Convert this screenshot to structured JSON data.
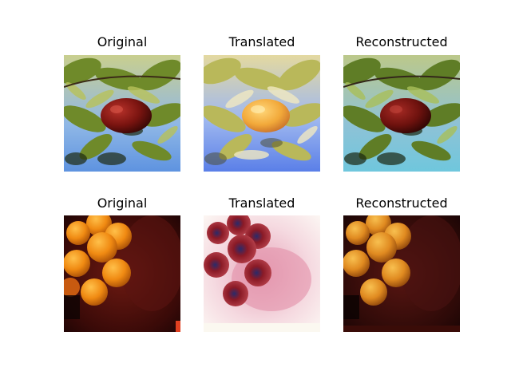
{
  "rows": [
    {
      "panels": [
        {
          "title": "Original",
          "subject": "red-apple-in-tree"
        },
        {
          "title": "Translated",
          "subject": "orange-fruit-in-tree"
        },
        {
          "title": "Reconstructed",
          "subject": "red-apple-in-tree"
        }
      ]
    },
    {
      "panels": [
        {
          "title": "Original",
          "subject": "oranges-cluster"
        },
        {
          "title": "Translated",
          "subject": "red-fruit-cluster-on-white"
        },
        {
          "title": "Reconstructed",
          "subject": "oranges-cluster"
        }
      ]
    }
  ]
}
